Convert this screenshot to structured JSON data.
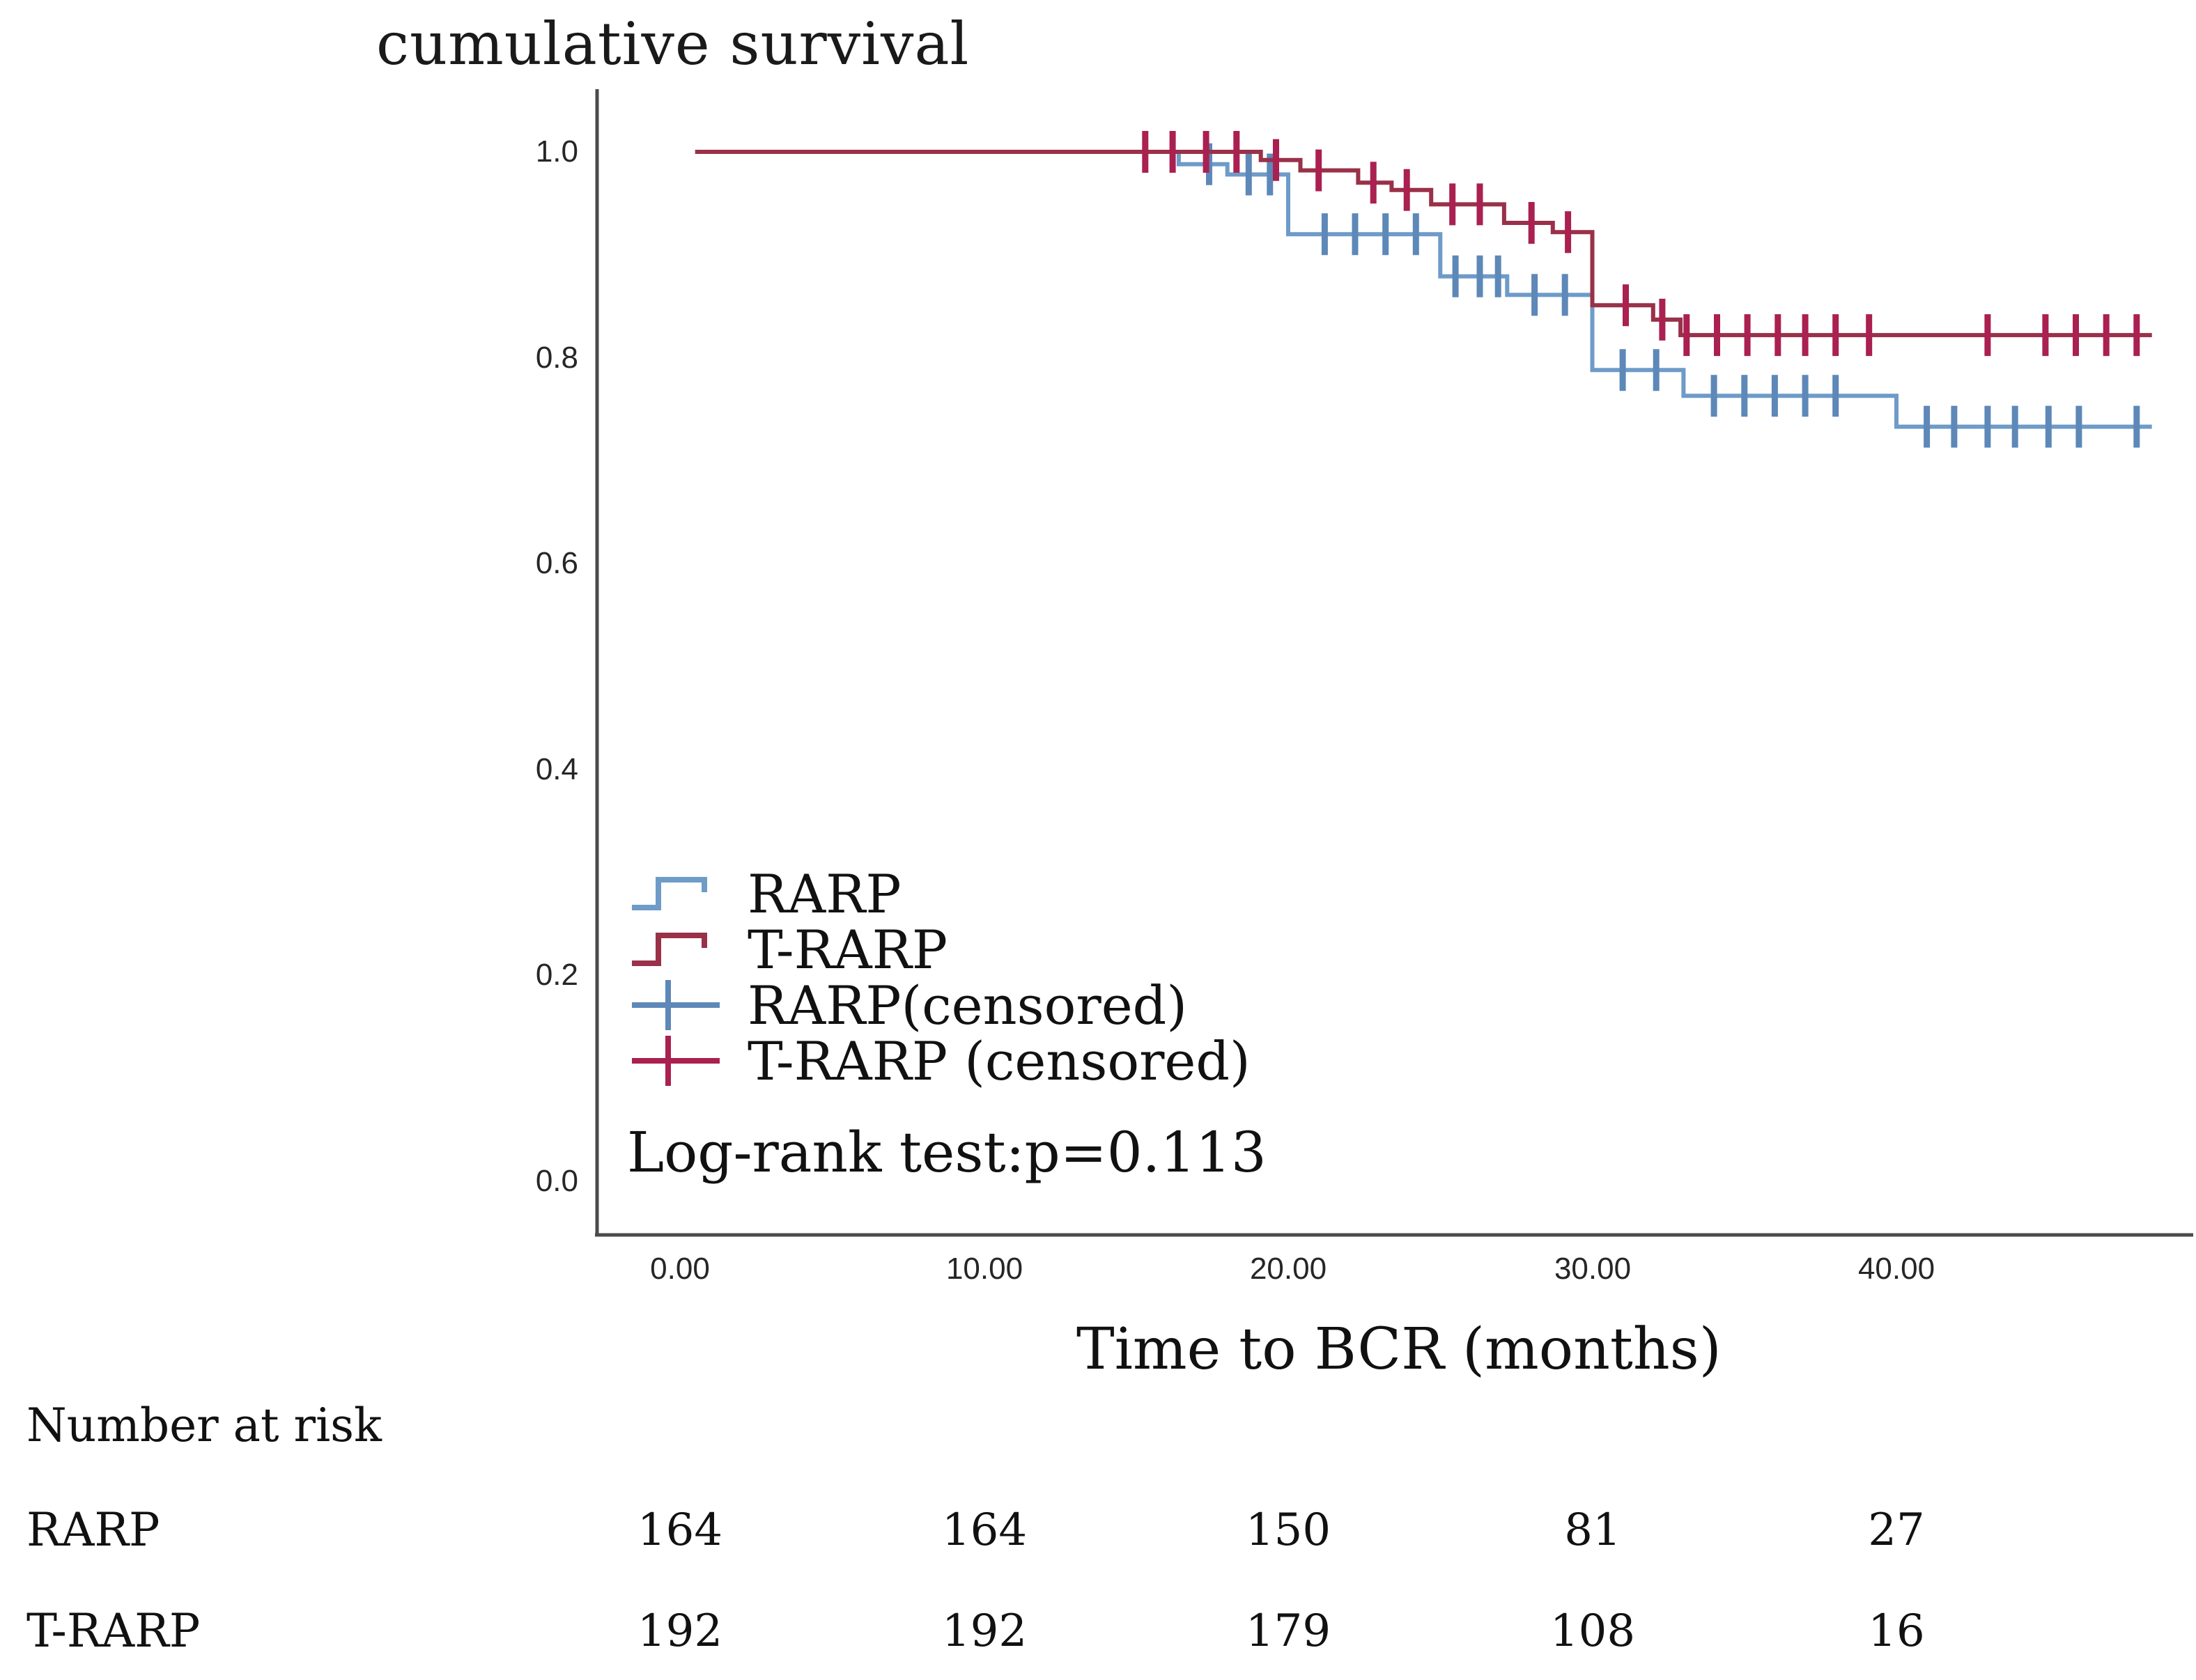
{
  "title": "cumulative survival",
  "chart_data": {
    "type": "line",
    "subtype": "kaplan-meier-step",
    "title": "cumulative survival",
    "xlabel": "Time to BCR (months)",
    "ylabel": "cumulative survival",
    "x_ticks": [
      "0.00",
      "10.00",
      "20.00",
      "30.00",
      "40.00"
    ],
    "x_tick_values": [
      0,
      10,
      20,
      30,
      40
    ],
    "y_ticks": [
      "1.0",
      "0.8",
      "0.6",
      "0.4",
      "0.2",
      "0.0"
    ],
    "y_tick_values": [
      1.0,
      0.8,
      0.6,
      0.4,
      0.2,
      0.0
    ],
    "xlim": [
      0,
      48.5
    ],
    "ylim": [
      0.0,
      1.0
    ],
    "grid": false,
    "legend_position": "inside-lower-left",
    "annotation": "Log-rank test:p=0.113",
    "axis_color": "#4b4b4b",
    "series": [
      {
        "name": "RARP",
        "color": "#6e9bc8",
        "censor_color": "#5d88b8",
        "steps": [
          [
            0.5,
            1.0
          ],
          [
            16.4,
            0.988
          ],
          [
            18.0,
            0.978
          ],
          [
            20.0,
            0.92
          ],
          [
            25.0,
            0.879
          ],
          [
            27.2,
            0.861
          ],
          [
            30.0,
            0.788
          ],
          [
            33.0,
            0.763
          ],
          [
            40.0,
            0.733
          ]
        ],
        "end_t": 48.4,
        "censors": [
          [
            17.4,
            0.988
          ],
          [
            18.7,
            0.978
          ],
          [
            19.4,
            0.978
          ],
          [
            21.2,
            0.92
          ],
          [
            22.2,
            0.92
          ],
          [
            23.2,
            0.92
          ],
          [
            24.2,
            0.92
          ],
          [
            25.5,
            0.879
          ],
          [
            26.3,
            0.879
          ],
          [
            26.9,
            0.879
          ],
          [
            28.1,
            0.861
          ],
          [
            29.1,
            0.861
          ],
          [
            31.0,
            0.788
          ],
          [
            32.1,
            0.788
          ],
          [
            34.0,
            0.763
          ],
          [
            35.0,
            0.763
          ],
          [
            36.0,
            0.763
          ],
          [
            37.0,
            0.763
          ],
          [
            38.0,
            0.763
          ],
          [
            41.0,
            0.733
          ],
          [
            41.9,
            0.733
          ],
          [
            43.0,
            0.733
          ],
          [
            43.9,
            0.733
          ],
          [
            45.0,
            0.733
          ],
          [
            46.0,
            0.733
          ],
          [
            47.9,
            0.733
          ]
        ]
      },
      {
        "name": "T-RARP",
        "color": "#993149",
        "censor_color": "#aa2050",
        "steps": [
          [
            0.5,
            1.0
          ],
          [
            19.1,
            0.992
          ],
          [
            20.4,
            0.982
          ],
          [
            22.3,
            0.97
          ],
          [
            23.4,
            0.963
          ],
          [
            24.7,
            0.949
          ],
          [
            27.1,
            0.931
          ],
          [
            28.7,
            0.922
          ],
          [
            30.0,
            0.851
          ],
          [
            32.0,
            0.837
          ],
          [
            32.9,
            0.822
          ]
        ],
        "end_t": 48.4,
        "censors": [
          [
            15.3,
            1.0
          ],
          [
            16.2,
            1.0
          ],
          [
            17.3,
            1.0
          ],
          [
            18.3,
            1.0
          ],
          [
            19.6,
            0.992
          ],
          [
            21.0,
            0.982
          ],
          [
            22.8,
            0.97
          ],
          [
            23.9,
            0.963
          ],
          [
            25.4,
            0.949
          ],
          [
            26.3,
            0.949
          ],
          [
            28.0,
            0.931
          ],
          [
            29.2,
            0.922
          ],
          [
            31.1,
            0.851
          ],
          [
            32.3,
            0.837
          ],
          [
            33.1,
            0.822
          ],
          [
            34.1,
            0.822
          ],
          [
            35.1,
            0.822
          ],
          [
            36.1,
            0.822
          ],
          [
            37.0,
            0.822
          ],
          [
            38.0,
            0.822
          ],
          [
            39.1,
            0.822
          ],
          [
            43.0,
            0.822
          ],
          [
            44.9,
            0.822
          ],
          [
            45.9,
            0.822
          ],
          [
            46.9,
            0.822
          ],
          [
            47.9,
            0.822
          ]
        ]
      }
    ],
    "legend": [
      {
        "label": "RARP",
        "type": "step",
        "color": "#6e9bc8"
      },
      {
        "label": "T-RARP",
        "type": "step",
        "color": "#993149"
      },
      {
        "label": "RARP(censored)",
        "type": "censor",
        "color": "#5d88b8"
      },
      {
        "label": "T-RARP (censored)",
        "type": "censor",
        "color": "#aa2050"
      }
    ]
  },
  "at_risk": {
    "header": "Number at risk",
    "rows": [
      {
        "label": "RARP",
        "values": [
          "164",
          "164",
          "150",
          "81",
          "27"
        ]
      },
      {
        "label": "T-RARP",
        "values": [
          "192",
          "192",
          "179",
          "108",
          "16"
        ]
      }
    ]
  }
}
